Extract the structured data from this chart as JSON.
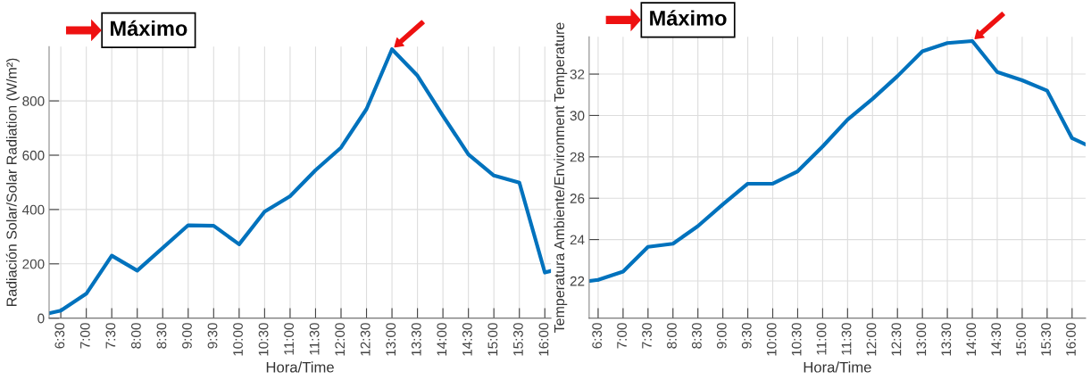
{
  "chart_data": [
    {
      "type": "line",
      "ylabel": "Radiación Solar/Solar Radiation (W/m²)",
      "xlabel": "Hora/Time",
      "annotations": [
        "Máximo"
      ],
      "series": [
        {
          "color": "#0072bd",
          "x": [
            6.27,
            6.5,
            7,
            7.5,
            8,
            9,
            9.5,
            10,
            10.5,
            11,
            11.5,
            12,
            12.5,
            13,
            13.5,
            14,
            14.5,
            15,
            15.5,
            16,
            16.12
          ],
          "values": [
            18,
            28,
            90,
            230,
            175,
            342,
            340,
            272,
            392,
            449,
            545,
            628,
            770,
            990,
            893,
            745,
            603,
            525,
            499,
            168,
            174
          ]
        }
      ],
      "xlim": [
        6.27,
        16.12
      ],
      "ylim": [
        0,
        1000
      ],
      "xticks": [
        {
          "value": 6.5,
          "label": "6:30"
        },
        {
          "value": 7,
          "label": "7:00"
        },
        {
          "value": 7.5,
          "label": "7:30"
        },
        {
          "value": 8,
          "label": "8:00"
        },
        {
          "value": 8.5,
          "label": "8:30"
        },
        {
          "value": 9,
          "label": "9:00"
        },
        {
          "value": 9.5,
          "label": "9:30"
        },
        {
          "value": 10,
          "label": "10:00"
        },
        {
          "value": 10.5,
          "label": "10:30"
        },
        {
          "value": 11,
          "label": "11:00"
        },
        {
          "value": 11.5,
          "label": "11:30"
        },
        {
          "value": 12,
          "label": "12:00"
        },
        {
          "value": 12.5,
          "label": "12:30"
        },
        {
          "value": 13,
          "label": "13:00"
        },
        {
          "value": 13.5,
          "label": "13:30"
        },
        {
          "value": 14,
          "label": "14:00"
        },
        {
          "value": 14.5,
          "label": "14:30"
        },
        {
          "value": 15,
          "label": "15:00"
        },
        {
          "value": 15.5,
          "label": "15:30"
        },
        {
          "value": 16,
          "label": "16:00"
        }
      ],
      "yticks": [
        0,
        200,
        400,
        600,
        800
      ],
      "grid": true,
      "line_style": "solid",
      "marker": "none"
    },
    {
      "type": "line",
      "ylabel": "Temperatura Ambiente/Environment Temperature",
      "xlabel": "Hora/Time",
      "annotations": [
        "Máximo"
      ],
      "series": [
        {
          "color": "#0072bd",
          "x": [
            6.32,
            6.5,
            7,
            7.5,
            8,
            8.5,
            9,
            9.5,
            10,
            10.5,
            11,
            11.5,
            12,
            12.5,
            13,
            13.5,
            14,
            14.5,
            15,
            15.5,
            16,
            16.27
          ],
          "values": [
            22.0,
            22.05,
            22.45,
            23.65,
            23.8,
            24.65,
            25.7,
            26.7,
            26.7,
            27.3,
            28.5,
            29.8,
            30.8,
            31.9,
            33.1,
            33.5,
            33.6,
            32.1,
            31.7,
            31.2,
            28.9,
            28.6
          ]
        }
      ],
      "xlim": [
        6.32,
        16.27
      ],
      "ylim": [
        20.2,
        33.8
      ],
      "xticks": [
        {
          "value": 6.5,
          "label": "6:30"
        },
        {
          "value": 7,
          "label": "7:00"
        },
        {
          "value": 7.5,
          "label": "7:30"
        },
        {
          "value": 8,
          "label": "8:00"
        },
        {
          "value": 8.5,
          "label": "8:30"
        },
        {
          "value": 9,
          "label": "9:00"
        },
        {
          "value": 9.5,
          "label": "9:30"
        },
        {
          "value": 10,
          "label": "10:00"
        },
        {
          "value": 10.5,
          "label": "10:30"
        },
        {
          "value": 11,
          "label": "11:00"
        },
        {
          "value": 11.5,
          "label": "11:30"
        },
        {
          "value": 12,
          "label": "12:00"
        },
        {
          "value": 12.5,
          "label": "12:30"
        },
        {
          "value": 13,
          "label": "13:00"
        },
        {
          "value": 13.5,
          "label": "13:30"
        },
        {
          "value": 14,
          "label": "14:00"
        },
        {
          "value": 14.5,
          "label": "14:30"
        },
        {
          "value": 15,
          "label": "15:00"
        },
        {
          "value": 15.5,
          "label": "15:30"
        },
        {
          "value": 16,
          "label": "16:00"
        }
      ],
      "yticks": [
        22,
        24,
        26,
        28,
        30,
        32
      ],
      "grid": true,
      "line_style": "solid",
      "marker": "none"
    }
  ]
}
